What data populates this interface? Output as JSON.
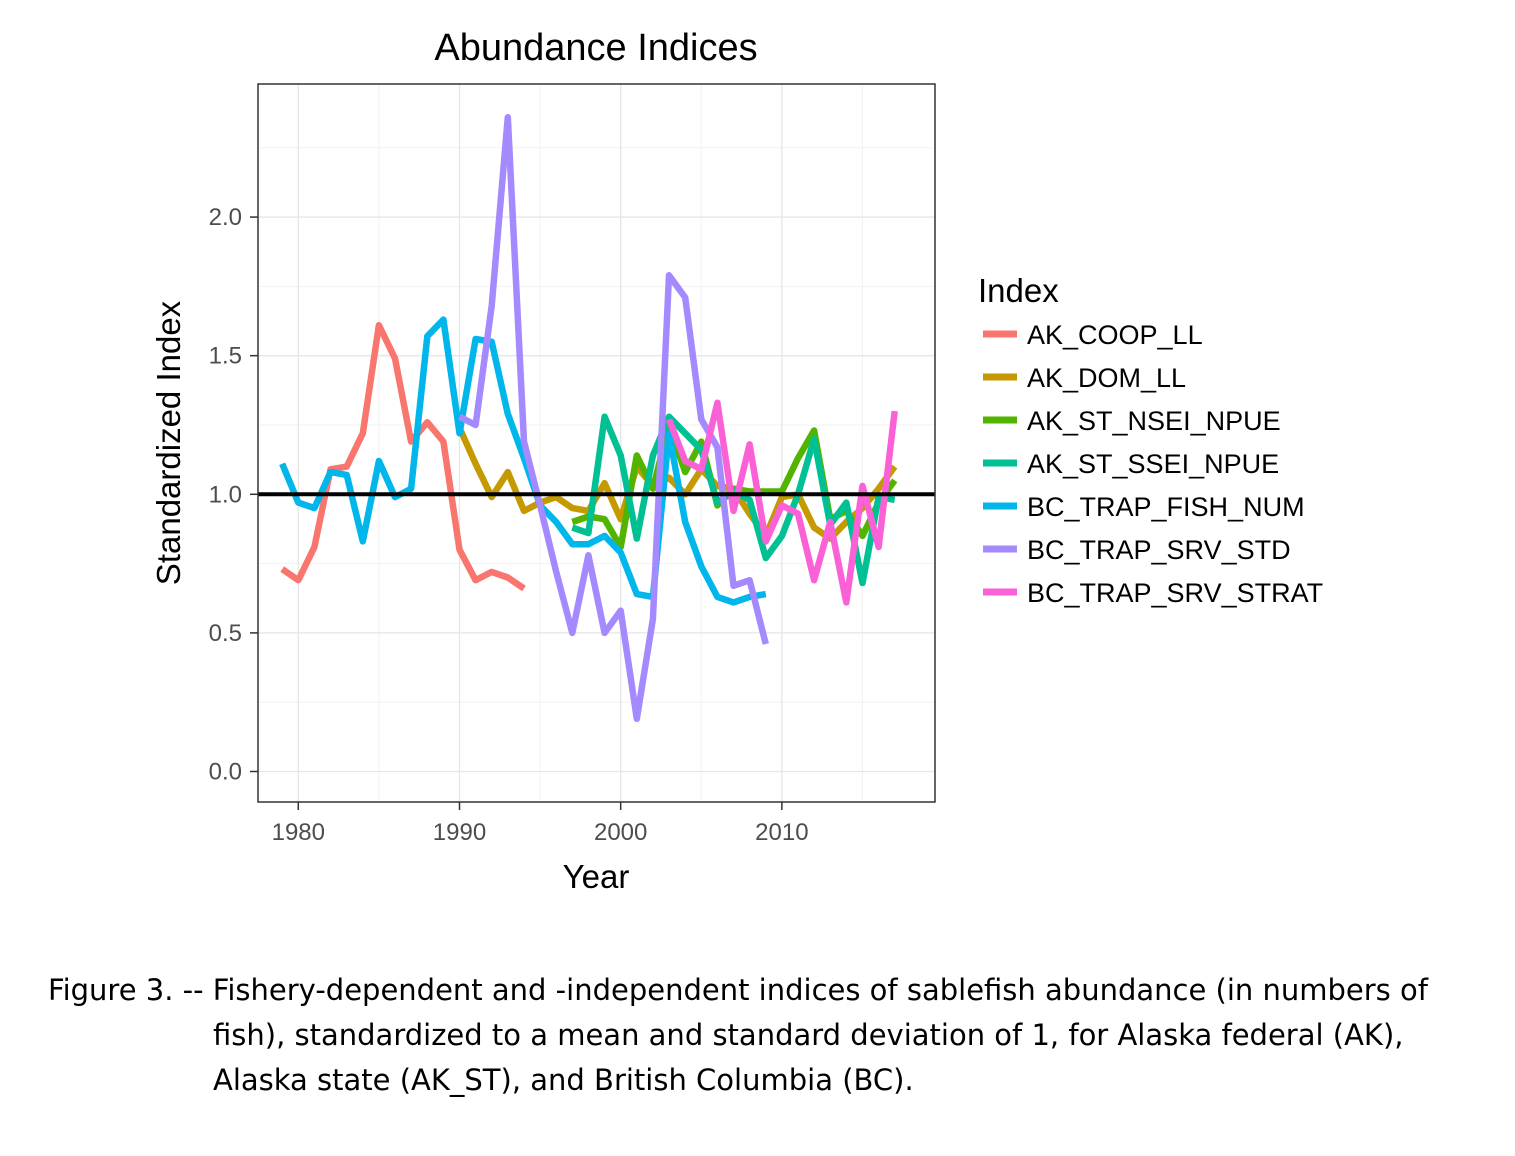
{
  "chart_data": {
    "type": "line",
    "title": "Abundance Indices",
    "xlabel": "Year",
    "ylabel": "Standardized Index",
    "xlim": [
      1977.5,
      2019.5
    ],
    "ylim": [
      -0.11,
      2.48
    ],
    "x_ticks": [
      1980,
      1990,
      2000,
      2010
    ],
    "x_tick_labels": [
      "1980",
      "1990",
      "2000",
      "2010"
    ],
    "y_ticks": [
      0.0,
      0.5,
      1.0,
      1.5,
      2.0
    ],
    "y_tick_labels": [
      "0.0",
      "0.5",
      "1.0",
      "1.5",
      "2.0"
    ],
    "grid": true,
    "reference_line": 1.0,
    "legend": {
      "title": "Index",
      "position": "right"
    },
    "series": [
      {
        "name": "AK_COOP_LL",
        "color": "#F8766D",
        "x": [
          1979,
          1980,
          1981,
          1982,
          1983,
          1984,
          1985,
          1986,
          1987,
          1988,
          1989,
          1990,
          1991,
          1992,
          1993,
          1994
        ],
        "y": [
          0.73,
          0.69,
          0.81,
          1.09,
          1.1,
          1.22,
          1.61,
          1.49,
          1.19,
          1.26,
          1.19,
          0.8,
          0.69,
          0.72,
          0.7,
          0.66
        ]
      },
      {
        "name": "AK_DOM_LL",
        "color": "#C49A00",
        "x": [
          1990,
          1991,
          1992,
          1993,
          1994,
          1995,
          1996,
          1997,
          1998,
          1999,
          2000,
          2001,
          2002,
          2003,
          2004,
          2005,
          2006,
          2007,
          2008,
          2009,
          2010,
          2011,
          2012,
          2013,
          2014,
          2015,
          2016,
          2017
        ],
        "y": [
          1.24,
          1.11,
          0.99,
          1.08,
          0.94,
          0.97,
          0.99,
          0.95,
          0.94,
          1.04,
          0.91,
          1.1,
          1.03,
          1.06,
          1.0,
          1.09,
          1.03,
          1.02,
          0.93,
          0.85,
          0.99,
          1.0,
          0.88,
          0.84,
          0.9,
          0.95,
          1.02,
          1.1
        ]
      },
      {
        "name": "AK_ST_NSEI_NPUE",
        "color": "#53B400",
        "x": [
          1997,
          1998,
          1999,
          2000,
          2001,
          2002,
          2003,
          2004,
          2005,
          2006,
          2007,
          2008,
          2009,
          2010,
          2011,
          2012,
          2013,
          2014,
          2015,
          2016,
          2017
        ],
        "y": [
          0.9,
          0.92,
          0.91,
          0.81,
          1.14,
          1.02,
          1.25,
          1.08,
          1.19,
          0.96,
          1.02,
          1.01,
          1.01,
          1.01,
          1.13,
          1.23,
          0.91,
          0.94,
          0.85,
          0.97,
          1.05
        ]
      },
      {
        "name": "AK_ST_SSEI_NPUE",
        "color": "#00C094",
        "x": [
          1997,
          1998,
          1999,
          2000,
          2001,
          2002,
          2003,
          2004,
          2005,
          2006,
          2007,
          2008,
          2009,
          2010,
          2011,
          2012,
          2013,
          2014,
          2015,
          2016,
          2017
        ],
        "y": [
          0.88,
          0.86,
          1.28,
          1.14,
          0.84,
          1.14,
          1.28,
          1.22,
          1.16,
          0.97,
          1.01,
          0.98,
          0.77,
          0.85,
          1.0,
          1.2,
          0.89,
          0.97,
          0.68,
          0.99,
          0.98
        ]
      },
      {
        "name": "BC_TRAP_FISH_NUM",
        "color": "#00B6EB",
        "x": [
          1979,
          1980,
          1981,
          1982,
          1983,
          1984,
          1985,
          1986,
          1987,
          1988,
          1989,
          1990,
          1991,
          1992,
          1993,
          1994,
          1995,
          1996,
          1997,
          1998,
          1999,
          2000,
          2001,
          2002,
          2003,
          2004,
          2005,
          2006,
          2007,
          2008,
          2009
        ],
        "y": [
          1.11,
          0.97,
          0.95,
          1.08,
          1.07,
          0.83,
          1.12,
          0.99,
          1.02,
          1.57,
          1.63,
          1.22,
          1.56,
          1.55,
          1.29,
          1.13,
          0.96,
          0.9,
          0.82,
          0.82,
          0.85,
          0.79,
          0.64,
          0.63,
          1.22,
          0.9,
          0.74,
          0.63,
          0.61,
          0.63,
          0.64
        ]
      },
      {
        "name": "BC_TRAP_SRV_STD",
        "color": "#A58AFF",
        "x": [
          1990,
          1991,
          1992,
          1993,
          1994,
          1995,
          1996,
          1997,
          1998,
          1999,
          2000,
          2001,
          2002,
          2003,
          2004,
          2005,
          2006,
          2007,
          2008,
          2009
        ],
        "y": [
          1.28,
          1.25,
          1.68,
          2.36,
          1.19,
          0.96,
          0.72,
          0.5,
          0.78,
          0.5,
          0.58,
          0.19,
          0.55,
          1.79,
          1.71,
          1.27,
          1.17,
          0.67,
          0.69,
          0.46
        ]
      },
      {
        "name": "BC_TRAP_SRV_STRAT",
        "color": "#FB61D7",
        "x": [
          2003,
          2004,
          2005,
          2006,
          2007,
          2008,
          2009,
          2010,
          2011,
          2012,
          2013,
          2014,
          2015,
          2016,
          2017
        ],
        "y": [
          1.27,
          1.12,
          1.09,
          1.33,
          0.94,
          1.18,
          0.83,
          0.96,
          0.93,
          0.69,
          0.9,
          0.61,
          1.03,
          0.81,
          1.3
        ]
      }
    ]
  },
  "caption": {
    "line1": "Figure 3. -- Fishery-dependent and -independent indices of sablefish abundance (in numbers of",
    "line2": "fish), standardized to a mean and standard deviation of 1, for Alaska federal (AK),",
    "line3": "Alaska state (AK_ST), and British Columbia (BC)."
  }
}
